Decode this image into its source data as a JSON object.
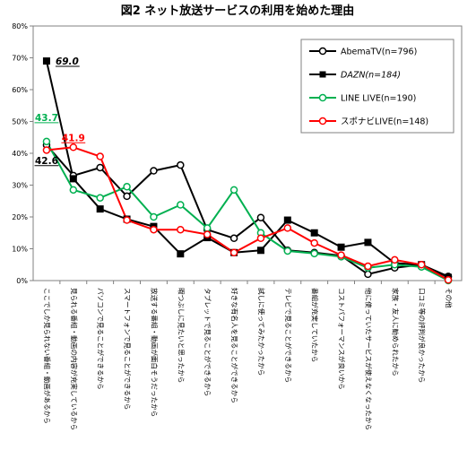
{
  "chart_data": {
    "type": "line",
    "title": "図2 ネット放送サービスの利用を始めた理由",
    "categories": [
      "ここでしか見られない番組・動画があるから",
      "見られる番組・動画の内容が充実しているから",
      "パソコンで見ることができるから",
      "スマートフォンで見ることができるから",
      "放送する番組・動画が面白そうだったから",
      "暇つぶしに見たいと思ったから",
      "タブレットで見ることができるから",
      "好きな有名人を見ることができるから",
      "試しに使ってみたかったから",
      "テレビで見ることができるから",
      "番組が充実していたから",
      "コストパフォーマンスが良いから",
      "他に使っていたサービスが使えなくなったから",
      "家族・友人に勧められたから",
      "口コミ等の評判が良かったから",
      "その他"
    ],
    "series": [
      {
        "name": "AbemaTV(n=796)",
        "color": "#000000",
        "marker": "circle-open",
        "values": [
          42.6,
          33.0,
          35.5,
          26.5,
          34.5,
          36.3,
          16.0,
          13.3,
          19.8,
          9.5,
          8.8,
          7.8,
          2.0,
          4.0,
          5.0,
          1.3
        ]
      },
      {
        "name": "DAZN(n=184)",
        "color": "#000000",
        "marker": "square-filled",
        "italic": true,
        "values": [
          69.0,
          32.0,
          22.5,
          19.3,
          17.0,
          8.4,
          13.5,
          8.8,
          9.5,
          19.0,
          15.0,
          10.5,
          12.0,
          5.5,
          5.0,
          1.0
        ]
      },
      {
        "name": "LINE LIVE(n=190)",
        "color": "#00b050",
        "marker": "circle-open",
        "values": [
          43.7,
          28.5,
          26.0,
          29.5,
          20.0,
          23.8,
          16.5,
          28.5,
          15.0,
          9.3,
          8.5,
          7.5,
          4.0,
          5.0,
          4.3,
          0.0
        ]
      },
      {
        "name": "スポナビLIVE(n=148)",
        "color": "#ff0000",
        "marker": "circle-open",
        "values": [
          41.0,
          41.9,
          39.0,
          19.0,
          16.0,
          16.0,
          14.5,
          8.8,
          13.3,
          16.5,
          11.8,
          8.0,
          4.5,
          6.5,
          5.0,
          0.2
        ]
      }
    ],
    "data_labels": [
      {
        "series": 1,
        "index": 0,
        "text": "69.0",
        "color": "#000000",
        "italic": true
      },
      {
        "series": 2,
        "index": 0,
        "text": "43.7",
        "color": "#00b050",
        "italic": false
      },
      {
        "series": 3,
        "index": 1,
        "text": "41.9",
        "color": "#ff0000",
        "italic": false
      },
      {
        "series": 0,
        "index": 0,
        "text": "42.6",
        "color": "#000000",
        "italic": false
      }
    ],
    "ylim": [
      0,
      80
    ],
    "ytick_step": 10,
    "ytick_suffix": "%",
    "grid": false,
    "legend_position": "top-right"
  }
}
